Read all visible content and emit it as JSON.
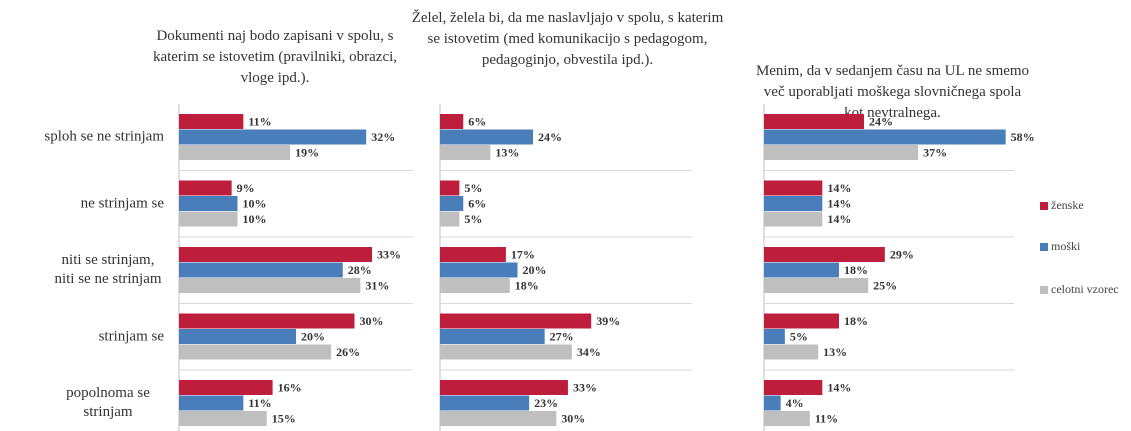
{
  "categories": [
    "sploh se ne strinjam",
    "ne strinjam se",
    "niti se strinjam, niti se ne strinjam",
    "strinjam se",
    "popolnoma se strinjam"
  ],
  "legend": [
    {
      "name": "ženske",
      "color": "#be1e3c"
    },
    {
      "name": "moški",
      "color": "#4a7ebb"
    },
    {
      "name": "celotni vzorec",
      "color": "#bfbfbf"
    }
  ],
  "chart_data": [
    {
      "type": "bar",
      "title": "Dokumenti naj bodo zapisani v spolu, s katerim se istovetim (pravilniki, obrazci, vloge ipd.).",
      "xlim": [
        0,
        40
      ],
      "series": [
        {
          "values": [
            11,
            9,
            33,
            30,
            16
          ],
          "value_labels": [
            "11%",
            "9%",
            "33%",
            "30%",
            "16%"
          ]
        },
        {
          "values": [
            32,
            10,
            28,
            20,
            11
          ],
          "value_labels": [
            "32%",
            "10%",
            "28%",
            "20%",
            "11%"
          ]
        },
        {
          "values": [
            19,
            10,
            31,
            26,
            15
          ],
          "value_labels": [
            "19%",
            "10%",
            "31%",
            "26%",
            "15%"
          ]
        }
      ]
    },
    {
      "type": "bar",
      "title": "Želel, želela bi, da me naslavljajo v spolu, s katerim se istovetim (med komunikacijo s pedagogom, pedagoginjo, obvestila ipd.).",
      "xlim": [
        0,
        65
      ],
      "series": [
        {
          "values": [
            6,
            5,
            17,
            39,
            33
          ],
          "value_labels": [
            "6%",
            "5%",
            "17%",
            "39%",
            "33%"
          ]
        },
        {
          "values": [
            24,
            6,
            20,
            27,
            23
          ],
          "value_labels": [
            "24%",
            "6%",
            "20%",
            "27%",
            "23%"
          ]
        },
        {
          "values": [
            13,
            5,
            18,
            34,
            30
          ],
          "value_labels": [
            "13%",
            "5%",
            "18%",
            "34%",
            "30%"
          ]
        }
      ]
    },
    {
      "type": "bar",
      "title": "Menim, da v sedanjem času na UL ne smemo več uporabljati moškega slovničnega spola kot nevtralnega.",
      "xlim": [
        0,
        60
      ],
      "series": [
        {
          "values": [
            24,
            14,
            29,
            18,
            14
          ],
          "value_labels": [
            "24%",
            "14%",
            "29%",
            "18%",
            "14%"
          ]
        },
        {
          "values": [
            58,
            14,
            18,
            5,
            4
          ],
          "value_labels": [
            "58%",
            "14%",
            "18%",
            "5%",
            "4%"
          ]
        },
        {
          "values": [
            37,
            14,
            25,
            13,
            11
          ],
          "value_labels": [
            "37%",
            "14%",
            "25%",
            "13%",
            "11%"
          ]
        }
      ]
    }
  ]
}
